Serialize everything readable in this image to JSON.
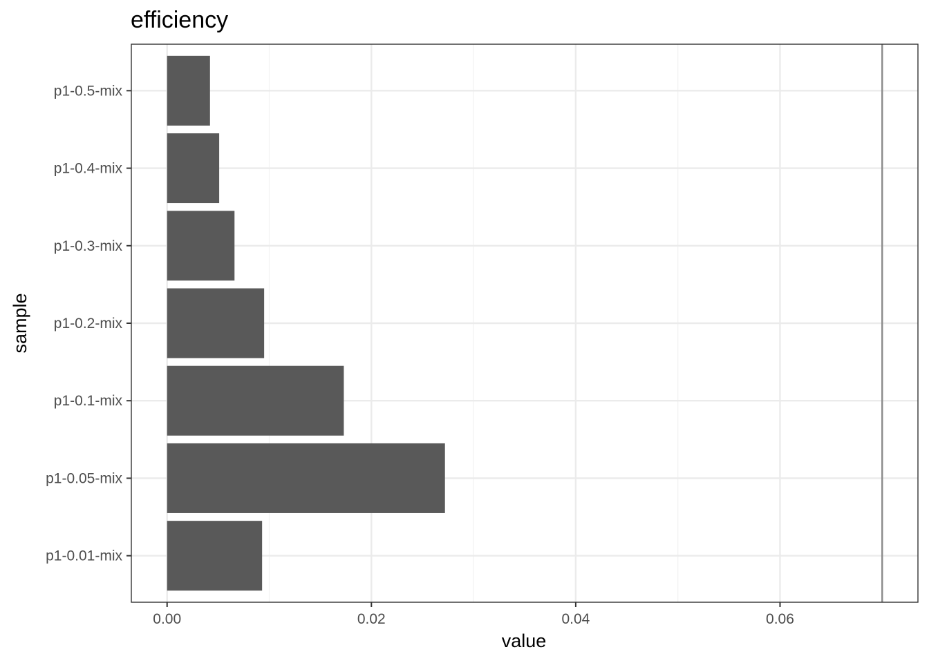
{
  "chart_data": {
    "type": "bar",
    "orientation": "horizontal",
    "title": "efficiency",
    "xlabel": "value",
    "ylabel": "sample",
    "categories": [
      "p1-0.01-mix",
      "p1-0.05-mix",
      "p1-0.1-mix",
      "p1-0.2-mix",
      "p1-0.3-mix",
      "p1-0.4-mix",
      "p1-0.5-mix"
    ],
    "values": [
      0.0093,
      0.0272,
      0.0173,
      0.0095,
      0.0066,
      0.0051,
      0.0042
    ],
    "xlim": [
      -0.0035,
      0.0735
    ],
    "xticks": [
      0.0,
      0.02,
      0.04,
      0.06
    ],
    "xtick_labels": [
      "0.00",
      "0.02",
      "0.04",
      "0.06"
    ],
    "reference_line_x": 0.07,
    "bar_color": "#595959",
    "grid": true,
    "legend": "none"
  }
}
